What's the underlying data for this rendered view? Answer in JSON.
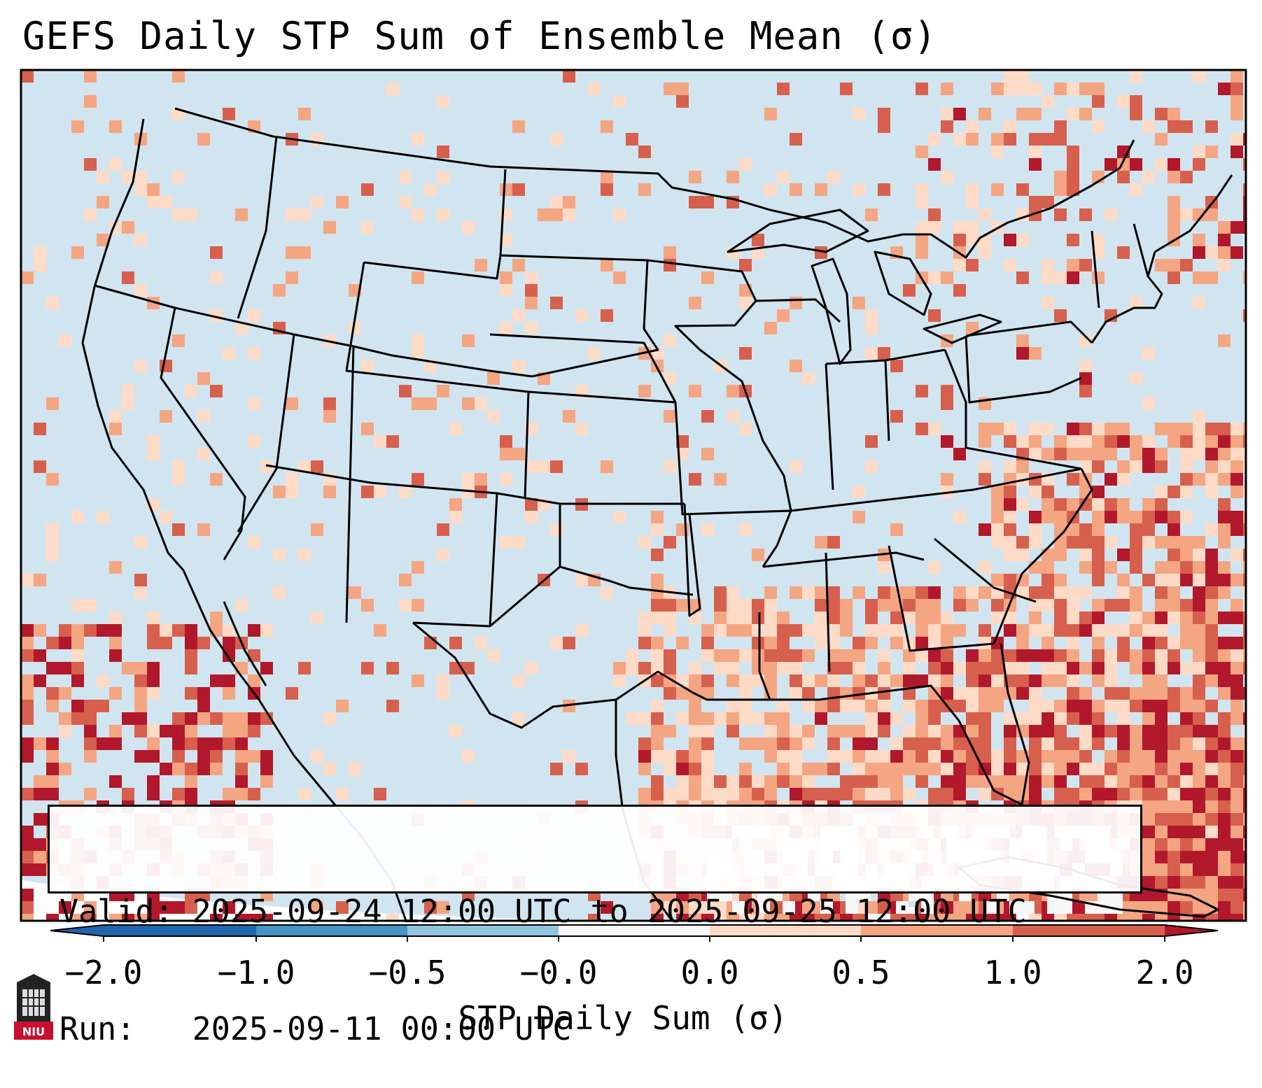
{
  "title": "GEFS Daily STP Sum of Ensemble Mean (σ)",
  "info": {
    "valid_line": "Valid: 2025-09-24 12:00 UTC to 2025-09-25 12:00 UTC",
    "run_line": "Run:   2025-09-11 00:00 UTC"
  },
  "colorbar": {
    "label": "STP Daily Sum (σ)",
    "ticks": [
      "−2.0",
      "−1.0",
      "−0.5",
      "−0.0",
      "0.0",
      "0.5",
      "1.0",
      "2.0"
    ],
    "colors": [
      "#2166ac",
      "#4393c3",
      "#92c5de",
      "#d1e5f0",
      "#f7f7f7",
      "#fddbc7",
      "#f4a582",
      "#d6604d",
      "#b2182b"
    ]
  },
  "map": {
    "region": "Contiguous United States",
    "background_color": "#d1e5f0",
    "anomaly_colors": {
      "light": "#fddbc7",
      "medium": "#f4a582",
      "strong": "#d6604d",
      "extreme": "#b2182b",
      "neutral": "#f7f7f7"
    }
  },
  "logo": {
    "text": "NIU"
  }
}
